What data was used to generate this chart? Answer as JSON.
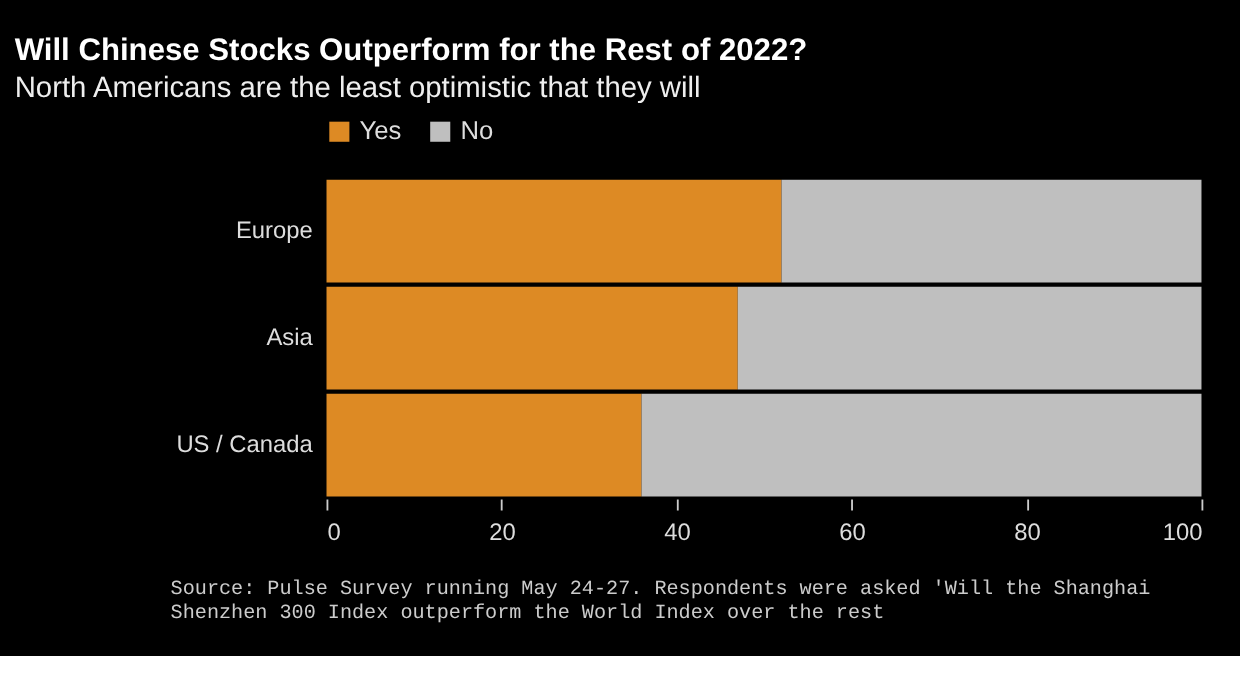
{
  "chart_data": {
    "type": "bar",
    "orientation": "horizontal",
    "stacked": true,
    "title": "Will Chinese Stocks Outperform for the Rest of 2022?",
    "subtitle": "North Americans are the least optimistic that they will",
    "categories": [
      "Europe",
      "Asia",
      "US / Canada"
    ],
    "series": [
      {
        "name": "Yes",
        "color": "#dd8a24",
        "values": [
          52,
          47,
          36
        ]
      },
      {
        "name": "No",
        "color": "#bfbfbf",
        "values": [
          48,
          53,
          64
        ]
      }
    ],
    "xlim": [
      0,
      100
    ],
    "xticks": [
      0,
      20,
      40,
      60,
      80,
      100
    ],
    "grid": false,
    "legend": "top",
    "annotations": [
      "Source: Pulse Survey running May 24-27. Respondents were asked 'Will the Shanghai Shenzhen 300 Index outperform the World Index over the rest"
    ]
  }
}
